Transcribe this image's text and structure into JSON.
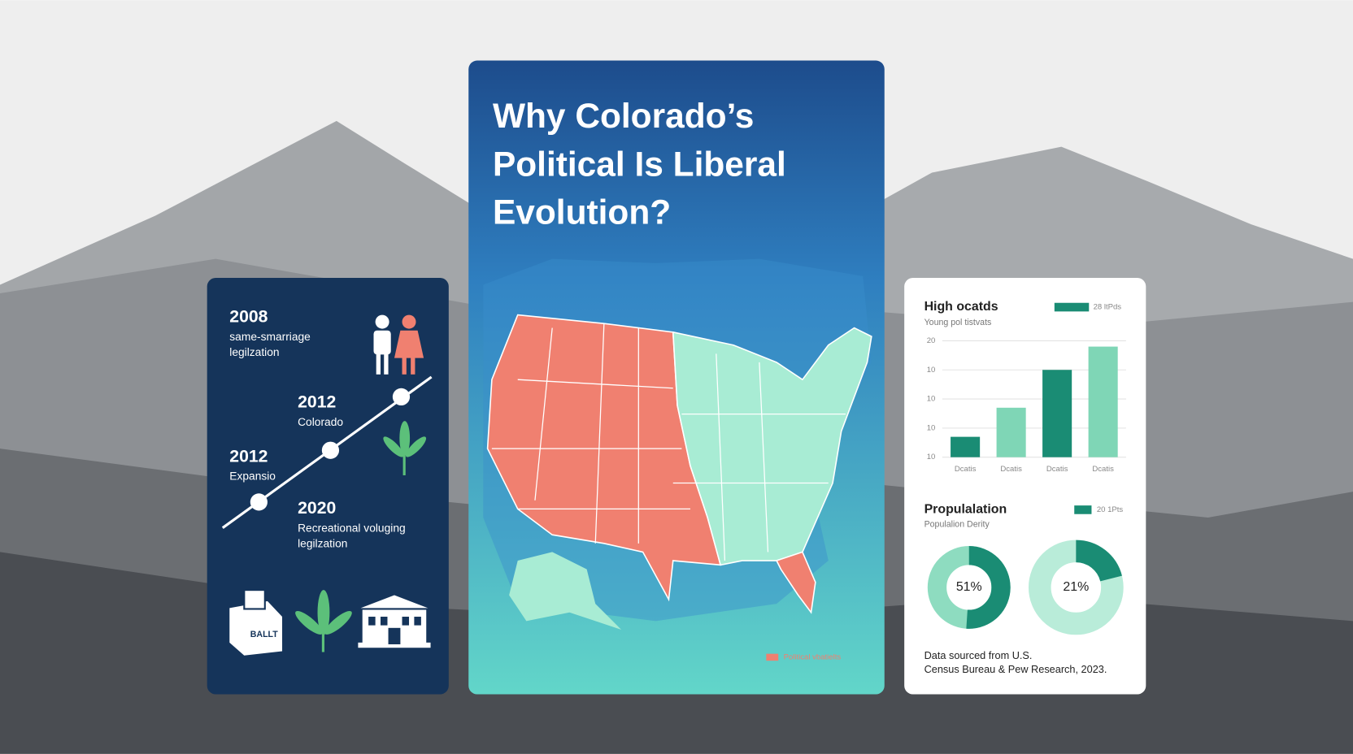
{
  "title_lines": [
    "Why Colorado’s",
    "Political Is Liberal",
    "Evolution?"
  ],
  "timeline": {
    "events": [
      {
        "year": "2008",
        "label_lines": [
          "same-smarriage",
          "legilzation"
        ]
      },
      {
        "year": "2012",
        "label_lines": [
          "Colorado"
        ]
      },
      {
        "year": "2012",
        "label_lines": [
          "Expansio"
        ]
      },
      {
        "year": "2020",
        "label_lines": [
          "Recreational voluging",
          "legilzation"
        ]
      }
    ],
    "ballot_label": "BALLT"
  },
  "map": {
    "legend": "Political vbatielts"
  },
  "chart_data": [
    {
      "type": "bar",
      "title": "High ocatds",
      "subtitle": "Young pol tistvats",
      "categories": [
        "Dcatis",
        "Dcatis",
        "Dcatis",
        "Dcatis"
      ],
      "series": [
        {
          "name": "28 ltPds",
          "color": "#1a8c74",
          "values": [
            0.7,
            1.7,
            3.0,
            3.8
          ]
        }
      ],
      "colors": [
        "#1a8c74",
        "#7fd6b6",
        "#1a8c74",
        "#7fd6b6"
      ],
      "ylim": [
        0,
        4
      ],
      "yticks": [
        {
          "value": 0,
          "label": "10"
        },
        {
          "value": 1,
          "label": "10"
        },
        {
          "value": 2,
          "label": "10"
        },
        {
          "value": 3,
          "label": "10"
        },
        {
          "value": 4,
          "label": "20"
        }
      ]
    },
    {
      "type": "pie",
      "title": "Propulalation",
      "subtitle": "Populalion Derity",
      "legend": "20 1Pts",
      "values": [
        51
      ],
      "value_labels": [
        "51%"
      ],
      "colors": [
        "#1a8c74",
        "#8edcc0"
      ]
    },
    {
      "type": "pie",
      "values": [
        21
      ],
      "value_labels": [
        "21%"
      ],
      "colors": [
        "#1a8c74",
        "#b9ecd9"
      ]
    }
  ],
  "footnote_lines": [
    "Data sourced from U.S.",
    "Census Bureau & Pew Research, 2023."
  ]
}
